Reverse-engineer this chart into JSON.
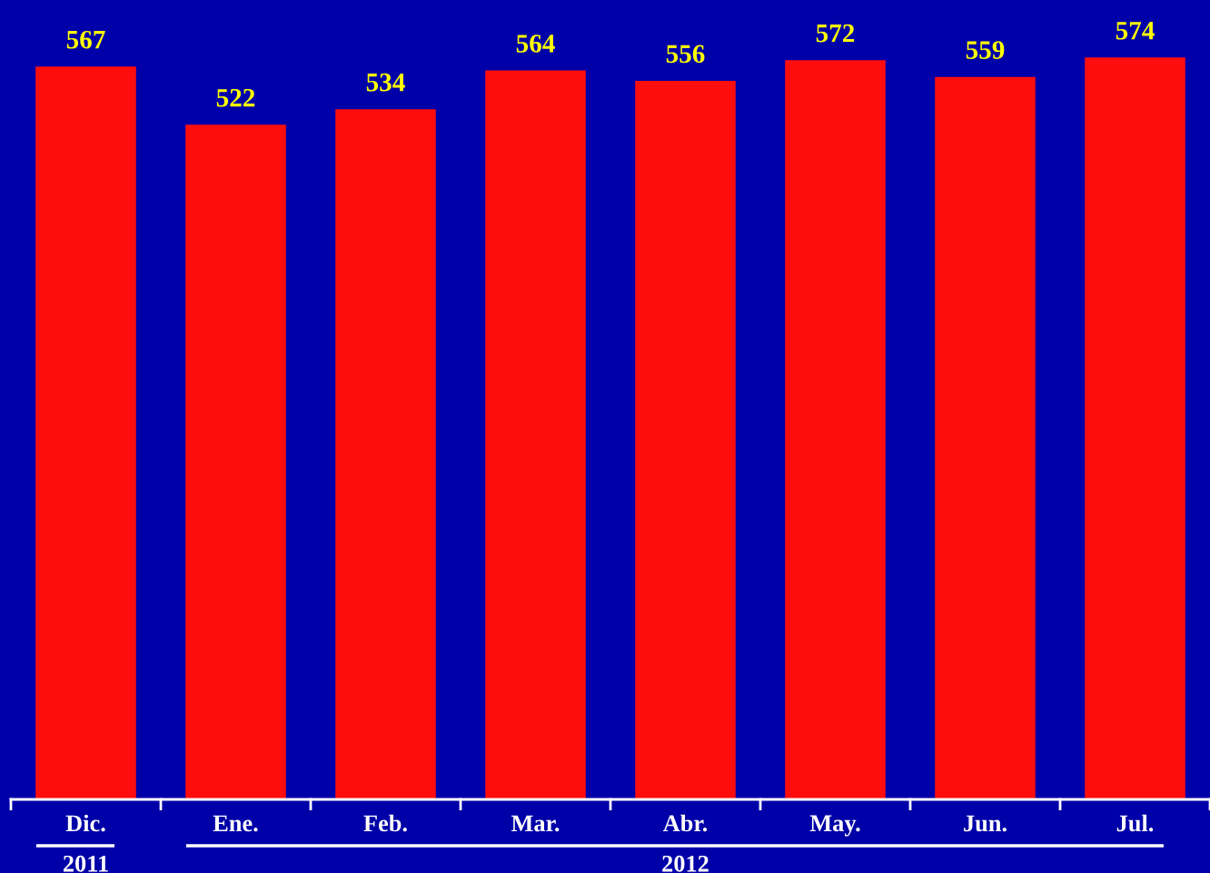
{
  "chart_data": {
    "type": "bar",
    "categories": [
      "Dic.",
      "Ene.",
      "Feb.",
      "Mar.",
      "Abr.",
      "May.",
      "Jun.",
      "Jul."
    ],
    "values": [
      567,
      522,
      534,
      564,
      556,
      572,
      559,
      574
    ],
    "color": "#ff0d0d",
    "data_labels": true,
    "annotations": [
      "2011",
      "2012"
    ]
  }
}
